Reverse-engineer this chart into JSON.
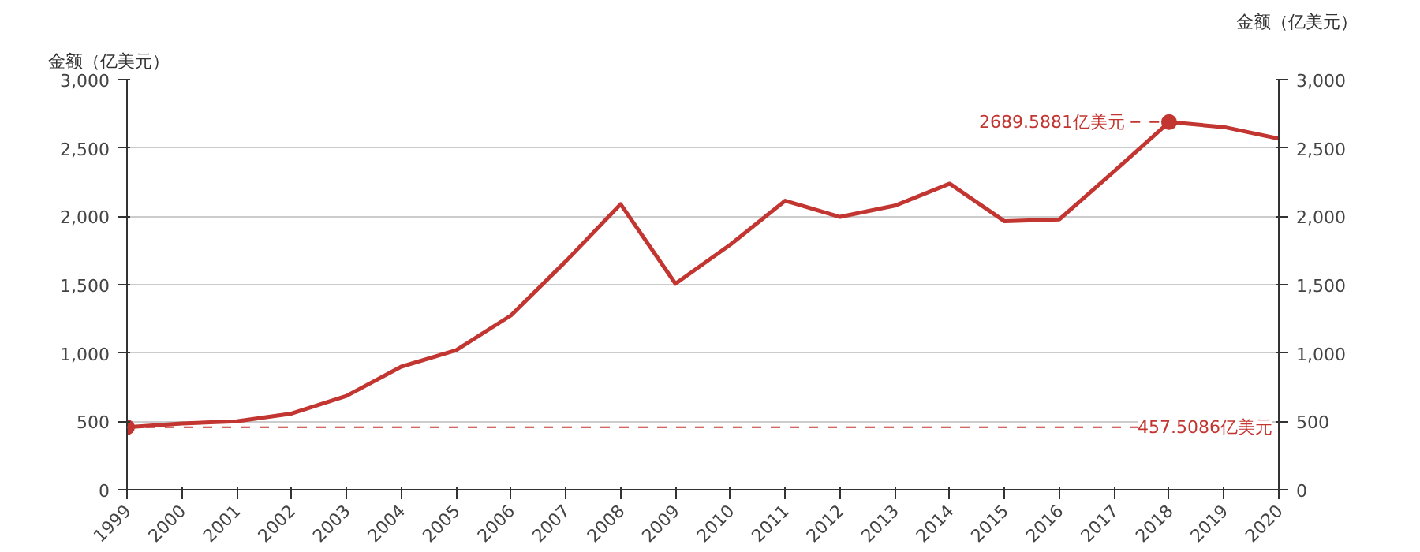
{
  "chart_data": {
    "type": "line",
    "ylabel": "金额（亿美元）",
    "y2label": "金额（亿美元）",
    "x": [
      1999,
      2000,
      2001,
      2002,
      2003,
      2004,
      2005,
      2006,
      2007,
      2008,
      2009,
      2010,
      2011,
      2012,
      2013,
      2014,
      2015,
      2016,
      2017,
      2018,
      2019,
      2020
    ],
    "series": [
      {
        "color": "#c23531",
        "values": [
          457.5086,
          485,
          500,
          557,
          686,
          900,
          1021,
          1275,
          1671,
          2089,
          1507,
          1793,
          2114,
          1996,
          2078,
          2239,
          1964,
          1978,
          2330,
          2689.5881,
          2653,
          2568
        ]
      }
    ],
    "xlim": [
      1999,
      2020
    ],
    "xticks": [
      1999,
      2000,
      2001,
      2002,
      2003,
      2004,
      2005,
      2006,
      2007,
      2008,
      2009,
      2010,
      2011,
      2012,
      2013,
      2014,
      2015,
      2016,
      2017,
      2018,
      2019,
      2020
    ],
    "ylim": [
      0,
      3000
    ],
    "yticks": [
      0,
      {
        "value": 500,
        "label": "500"
      },
      {
        "value": 1000,
        "label": "1,000"
      },
      {
        "value": 1500,
        "label": "1,500"
      },
      {
        "value": 2000,
        "label": "2,000"
      },
      {
        "value": 2500,
        "label": "2,500"
      },
      {
        "value": 3000,
        "label": "3,000"
      }
    ],
    "y2lim": [
      0,
      3000
    ],
    "y2ticks": [
      0,
      {
        "value": 500,
        "label": "500"
      },
      {
        "value": 1000,
        "label": "1,000"
      },
      {
        "value": 1500,
        "label": "1,500"
      },
      {
        "value": 2000,
        "label": "2,000"
      },
      {
        "value": 2500,
        "label": "2,500"
      },
      {
        "value": 3000,
        "label": "3,000"
      }
    ],
    "ref_lines": [
      {
        "axis": "y",
        "value": 457.5086,
        "label": "457.5086亿美元",
        "color": "#c23531",
        "line_style": "dashed"
      }
    ],
    "annotations": [
      {
        "text": "2689.5881亿美元",
        "x": 2018,
        "y": 2689.5881
      }
    ],
    "grid": "y",
    "marker": "none",
    "line_style": "solid"
  }
}
